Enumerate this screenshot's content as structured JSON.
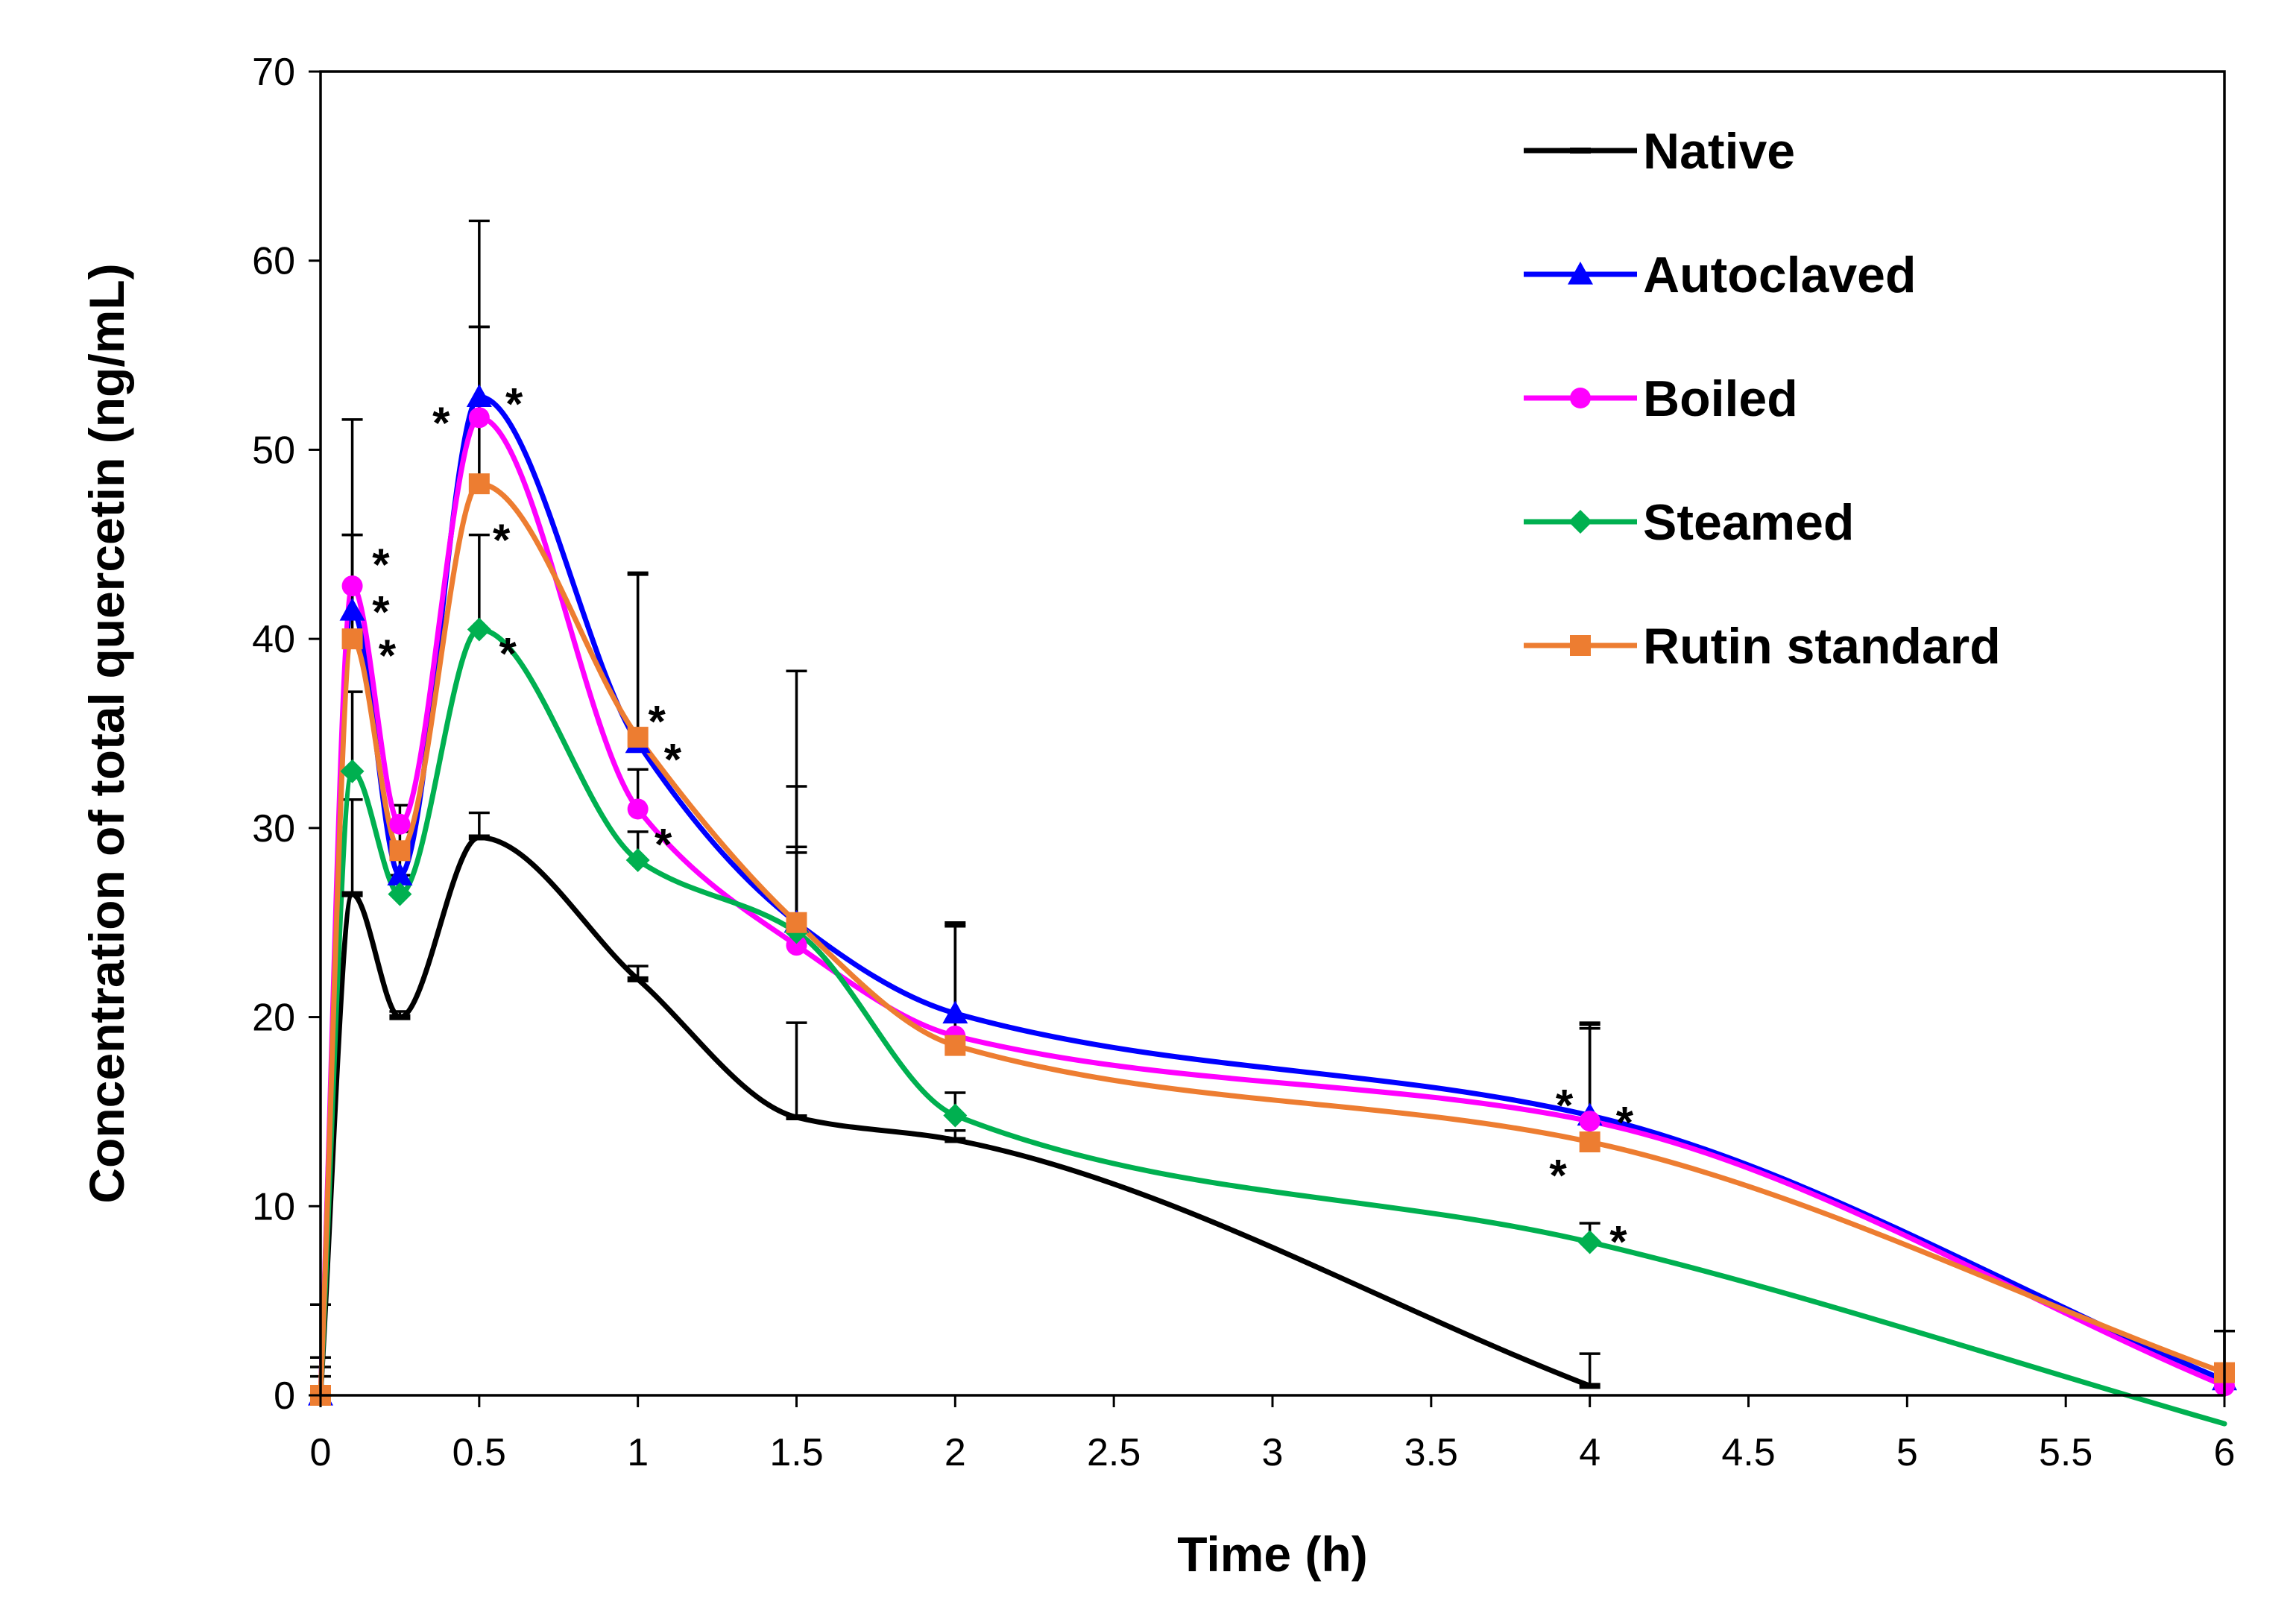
{
  "chart_data": {
    "type": "line",
    "title": "",
    "xlabel": "Time (h)",
    "ylabel": "Concentration of total quercetin (ng/mL)",
    "xlim": [
      0,
      6
    ],
    "ylim": [
      0,
      70
    ],
    "x_ticks": [
      0,
      0.5,
      1,
      1.5,
      2,
      2.5,
      3,
      3.5,
      4,
      4.5,
      5,
      5.5,
      6
    ],
    "x_tick_labels": [
      "0",
      "0.5",
      "1",
      "1.5",
      "2",
      "2.5",
      "3",
      "3.5",
      "4",
      "4.5",
      "5",
      "5.5",
      "6"
    ],
    "y_ticks": [
      0,
      10,
      20,
      30,
      40,
      50,
      60,
      70
    ],
    "y_tick_labels": [
      "0",
      "10",
      "20",
      "30",
      "40",
      "50",
      "60",
      "70"
    ],
    "grid": false,
    "legend_position": "top-right",
    "series": [
      {
        "name": "Native",
        "color": "#000000",
        "marker": "dash",
        "x": [
          0,
          0.1,
          0.25,
          0.5,
          1,
          1.5,
          2,
          4
        ],
        "y": [
          0,
          26.5,
          20,
          29.5,
          22,
          14.7,
          13.5,
          0.5
        ],
        "err": [
          4.8,
          5,
          0.3,
          1.3,
          0.7,
          5,
          0.5,
          1.7
        ]
      },
      {
        "name": "Autoclaved",
        "color": "#0000ff",
        "marker": "triangle",
        "x": [
          0,
          0.1,
          0.25,
          0.5,
          1,
          1.5,
          2,
          4,
          6
        ],
        "y": [
          0,
          41.5,
          27.5,
          52.8,
          34.5,
          25,
          20.2,
          14.8,
          0.8
        ],
        "err": [
          2,
          4,
          1,
          9.3,
          9,
          13.3,
          4.8,
          4.8,
          0
        ]
      },
      {
        "name": "Boiled",
        "color": "#ff00ff",
        "marker": "circle",
        "x": [
          0,
          0.1,
          0.25,
          0.5,
          1,
          1.5,
          2,
          4,
          6
        ],
        "y": [
          0,
          42.8,
          30.2,
          51.7,
          31,
          23.8,
          19,
          14.5,
          0.5
        ],
        "err": [
          2,
          8.8,
          1,
          4.8,
          2.1,
          5.2,
          5.9,
          5.2,
          0
        ]
      },
      {
        "name": "Steamed",
        "color": "#00b050",
        "marker": "diamond",
        "x": [
          0,
          0.1,
          0.25,
          0.5,
          1,
          1.5,
          2,
          4,
          6
        ],
        "y": [
          0,
          33,
          26.5,
          40.5,
          28.3,
          24.5,
          14.8,
          8.1,
          -1.5
        ],
        "err": [
          1,
          4.2,
          1,
          5,
          1.5,
          4.2,
          1.2,
          1,
          0
        ]
      },
      {
        "name": "Rutin standard",
        "color": "#ed7d31",
        "marker": "square",
        "x": [
          0,
          0.1,
          0.25,
          0.5,
          1,
          1.5,
          2,
          4,
          6
        ],
        "y": [
          0,
          40,
          28.8,
          48.2,
          34.8,
          25,
          18.5,
          13.4,
          1.2
        ],
        "err": [
          1.5,
          5.5,
          1,
          8.3,
          8.6,
          7.2,
          6.3,
          6,
          2.2
        ]
      }
    ],
    "annotations": [
      {
        "text": "*",
        "x": 0.19,
        "y": 44.3
      },
      {
        "text": "*",
        "x": 0.19,
        "y": 41.8
      },
      {
        "text": "*",
        "x": 0.21,
        "y": 39.5
      },
      {
        "text": "*",
        "x": 0.38,
        "y": 51.8
      },
      {
        "text": "*",
        "x": 0.61,
        "y": 52.8
      },
      {
        "text": "*",
        "x": 0.57,
        "y": 45.6
      },
      {
        "text": "*",
        "x": 0.59,
        "y": 39.6
      },
      {
        "text": "*",
        "x": 1.06,
        "y": 36
      },
      {
        "text": "*",
        "x": 1.11,
        "y": 34
      },
      {
        "text": "*",
        "x": 1.08,
        "y": 29.5
      },
      {
        "text": "*",
        "x": 3.92,
        "y": 15.7
      },
      {
        "text": "*",
        "x": 4.11,
        "y": 14.8
      },
      {
        "text": "*",
        "x": 3.9,
        "y": 12
      },
      {
        "text": "*",
        "x": 4.09,
        "y": 8.5
      }
    ]
  }
}
